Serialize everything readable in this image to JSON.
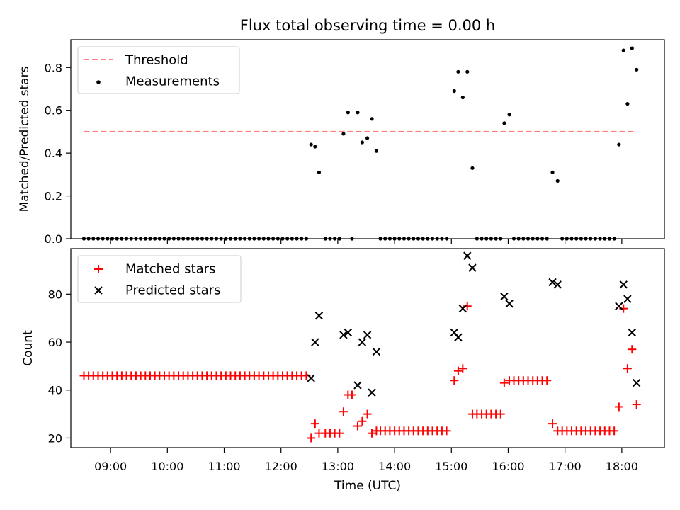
{
  "title": "Flux total observing time = 0.00 h",
  "chart_data": [
    {
      "type": "scatter",
      "ylabel": "Matched/Predicted stars",
      "xlim": [
        8.3,
        18.75
      ],
      "ylim": [
        0,
        0.93
      ],
      "yticks": [
        0.0,
        0.2,
        0.4,
        0.6,
        0.8
      ],
      "yticklabels": [
        "0.0",
        "0.2",
        "0.4",
        "0.6",
        "0.8"
      ],
      "legend": {
        "position": "upper-left",
        "labels": [
          "Threshold",
          "Measurements"
        ]
      },
      "threshold": {
        "name": "Threshold",
        "y": 0.5,
        "x_range": [
          8.53,
          18.22
        ],
        "color": "#ff7f7f"
      },
      "series": [
        {
          "name": "Measurements",
          "color": "#000000",
          "points": [
            [
              12.53,
              0.44
            ],
            [
              12.6,
              0.43
            ],
            [
              12.67,
              0.31
            ],
            [
              13.1,
              0.49
            ],
            [
              13.18,
              0.59
            ],
            [
              13.35,
              0.59
            ],
            [
              13.43,
              0.45
            ],
            [
              13.52,
              0.47
            ],
            [
              13.6,
              0.56
            ],
            [
              13.68,
              0.41
            ],
            [
              15.05,
              0.69
            ],
            [
              15.12,
              0.78
            ],
            [
              15.2,
              0.66
            ],
            [
              15.28,
              0.78
            ],
            [
              15.37,
              0.33
            ],
            [
              15.93,
              0.54
            ],
            [
              16.02,
              0.58
            ],
            [
              16.78,
              0.31
            ],
            [
              16.87,
              0.27
            ],
            [
              17.95,
              0.44
            ],
            [
              18.03,
              0.88
            ],
            [
              18.1,
              0.63
            ],
            [
              18.18,
              0.89
            ],
            [
              18.26,
              0.79
            ]
          ],
          "zero_segments": [
            {
              "from": 8.53,
              "to": 12.46,
              "step": 0.0833
            },
            {
              "from": 12.78,
              "to": 13.03,
              "step": 0.0833
            },
            {
              "from": 13.25,
              "to": 13.25,
              "step": 0.0833
            },
            {
              "from": 13.75,
              "to": 14.95,
              "step": 0.0833
            },
            {
              "from": 15.45,
              "to": 15.87,
              "step": 0.0833
            },
            {
              "from": 16.1,
              "to": 16.7,
              "step": 0.0833
            },
            {
              "from": 16.95,
              "to": 17.88,
              "step": 0.0833
            }
          ]
        }
      ]
    },
    {
      "type": "scatter",
      "xlabel": "Time (UTC)",
      "ylabel": "Count",
      "xlim": [
        8.3,
        18.75
      ],
      "ylim": [
        16,
        99
      ],
      "yticks": [
        20,
        40,
        60,
        80
      ],
      "yticklabels": [
        "20",
        "40",
        "60",
        "80"
      ],
      "xticks": [
        9,
        10,
        11,
        12,
        13,
        14,
        15,
        16,
        17,
        18
      ],
      "xticklabels": [
        "09:00",
        "10:00",
        "11:00",
        "12:00",
        "13:00",
        "14:00",
        "15:00",
        "16:00",
        "17:00",
        "18:00"
      ],
      "legend": {
        "position": "upper-left",
        "labels": [
          "Matched stars",
          "Predicted stars"
        ]
      },
      "series": [
        {
          "name": "Matched stars",
          "marker": "plus",
          "color": "#ff0000",
          "segments": [
            {
              "from": 8.53,
              "to": 12.46,
              "step": 0.0833,
              "y": 46
            },
            {
              "from": 12.78,
              "to": 13.03,
              "step": 0.0833,
              "y": 22
            },
            {
              "from": 13.75,
              "to": 14.95,
              "step": 0.0833,
              "y": 23
            },
            {
              "from": 15.45,
              "to": 15.87,
              "step": 0.0833,
              "y": 30
            },
            {
              "from": 16.1,
              "to": 16.7,
              "step": 0.0833,
              "y": 44
            },
            {
              "from": 16.95,
              "to": 17.88,
              "step": 0.0833,
              "y": 23
            }
          ],
          "points": [
            [
              12.53,
              20
            ],
            [
              12.6,
              26
            ],
            [
              12.67,
              22
            ],
            [
              13.1,
              31
            ],
            [
              13.18,
              38
            ],
            [
              13.25,
              38
            ],
            [
              13.35,
              25
            ],
            [
              13.43,
              27
            ],
            [
              13.52,
              30
            ],
            [
              13.6,
              22
            ],
            [
              13.68,
              23
            ],
            [
              15.05,
              44
            ],
            [
              15.12,
              48
            ],
            [
              15.2,
              49
            ],
            [
              15.28,
              75
            ],
            [
              15.37,
              30
            ],
            [
              15.93,
              43
            ],
            [
              16.02,
              44
            ],
            [
              16.78,
              26
            ],
            [
              16.87,
              23
            ],
            [
              17.95,
              33
            ],
            [
              18.03,
              74
            ],
            [
              18.1,
              49
            ],
            [
              18.18,
              57
            ],
            [
              18.26,
              34
            ]
          ]
        },
        {
          "name": "Predicted stars",
          "marker": "x",
          "color": "#000000",
          "points": [
            [
              12.53,
              45
            ],
            [
              12.6,
              60
            ],
            [
              12.67,
              71
            ],
            [
              13.1,
              63
            ],
            [
              13.18,
              64
            ],
            [
              13.35,
              42
            ],
            [
              13.43,
              60
            ],
            [
              13.52,
              63
            ],
            [
              13.6,
              39
            ],
            [
              13.68,
              56
            ],
            [
              15.05,
              64
            ],
            [
              15.12,
              62
            ],
            [
              15.2,
              74
            ],
            [
              15.28,
              96
            ],
            [
              15.37,
              91
            ],
            [
              15.93,
              79
            ],
            [
              16.02,
              76
            ],
            [
              16.78,
              85
            ],
            [
              16.87,
              84
            ],
            [
              17.95,
              75
            ],
            [
              18.03,
              84
            ],
            [
              18.1,
              78
            ],
            [
              18.18,
              64
            ],
            [
              18.26,
              43
            ]
          ]
        }
      ]
    }
  ]
}
